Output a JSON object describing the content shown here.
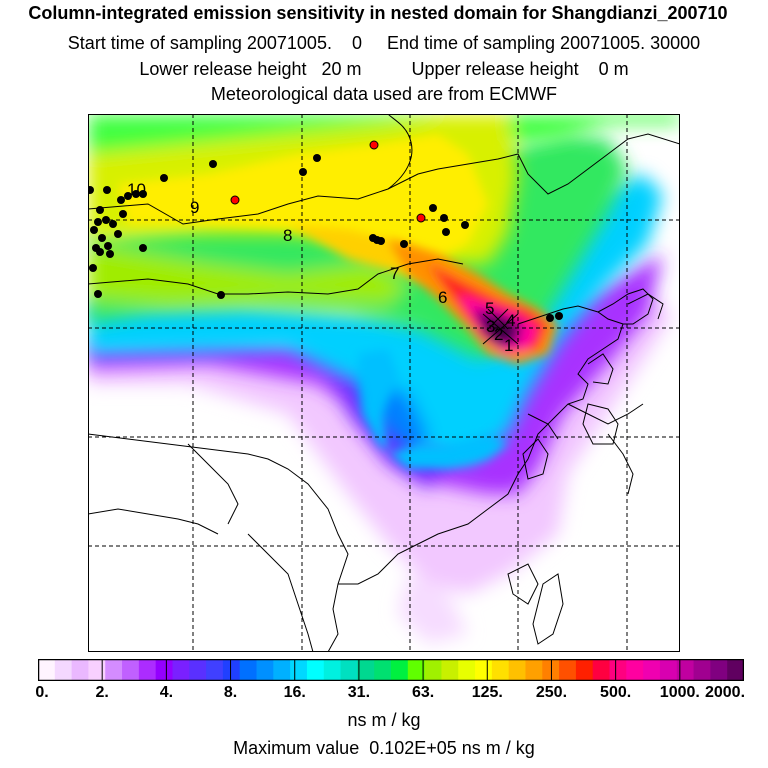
{
  "title": {
    "line1": "Column-integrated emission sensitivity in nested domain for Shangdianzi_200710",
    "line2": "Start time of sampling 20071005.    0     End time of sampling 20071005. 30000",
    "line3": "Lower release height   20 m          Upper release height    0 m",
    "line4": "Meteorological data used are from ECMWF"
  },
  "colorbar": {
    "labels": [
      "0.",
      "2.",
      "4.",
      "8.",
      "16.",
      "31.",
      "63.",
      "125.",
      "250.",
      "500.",
      "1000.",
      "2000."
    ],
    "colors": [
      "#fff4ff",
      "#f4d8ff",
      "#eab8ff",
      "#f8d0ff",
      "#d48cff",
      "#c060ff",
      "#ac2cff",
      "#9400ff",
      "#7a20ff",
      "#5a30ff",
      "#4040ff",
      "#2040ff",
      "#0070ff",
      "#0090ff",
      "#00b0ff",
      "#00d8ff",
      "#00ffff",
      "#00f0e0",
      "#00e0c0",
      "#00d890",
      "#00e070",
      "#00f040",
      "#60ff00",
      "#a0f000",
      "#c8f000",
      "#e8ff00",
      "#ffff00",
      "#ffe000",
      "#ffc000",
      "#ffa000",
      "#ff8000",
      "#ff5000",
      "#ff2000",
      "#ff0040",
      "#ff0080",
      "#ff00a0",
      "#f000b0",
      "#d800b0",
      "#c000a0",
      "#a00090",
      "#800080",
      "#600060"
    ],
    "unit": "ns m / kg",
    "max_text": "Maximum value  0.102E+05 ns m / kg"
  },
  "map": {
    "trajectory_labels": [
      "1",
      "2",
      "3",
      "4",
      "5",
      "6",
      "7",
      "8",
      "9",
      "10"
    ],
    "station_colors": {
      "black": "#000000",
      "red": "#ff0000"
    }
  }
}
